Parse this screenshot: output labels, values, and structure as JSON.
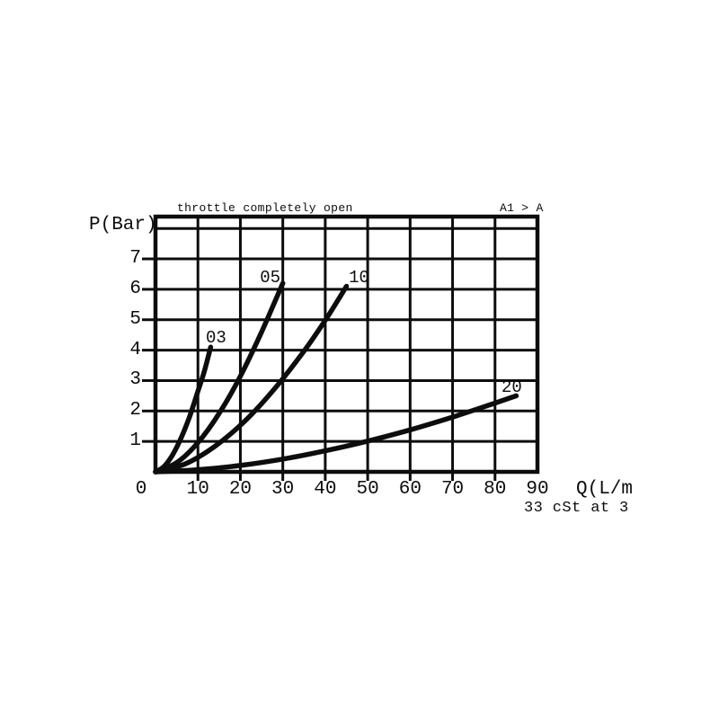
{
  "page": {
    "background": "#ffffff",
    "ink_color": "#0d0d0d"
  },
  "chart_data": {
    "type": "line",
    "title": "throttle completely open",
    "corner_note": "A1 > A",
    "ylabel": "P(Bar)",
    "xlabel": "Q(L/m",
    "footnote": "33 cSt at 3",
    "xlim": [
      0,
      90
    ],
    "ylim": [
      0,
      8.4
    ],
    "x_ticks": [
      0,
      10,
      20,
      30,
      40,
      50,
      60,
      70,
      80,
      90
    ],
    "y_ticks": [
      1,
      2,
      3,
      4,
      5,
      6,
      7
    ],
    "y_gridlines": [
      1,
      2,
      3,
      4,
      5,
      6,
      7,
      8
    ],
    "grid": true,
    "legend_position": "inline-curve-labels",
    "line_color": "#0d0d0d",
    "series": [
      {
        "name": "03",
        "points": [
          [
            0,
            0
          ],
          [
            2,
            0.17
          ],
          [
            4,
            0.55
          ],
          [
            6,
            1.1
          ],
          [
            8,
            1.8
          ],
          [
            10,
            2.65
          ],
          [
            11.5,
            3.3
          ],
          [
            13,
            4.1
          ]
        ],
        "label_offset": [
          6,
          -10
        ]
      },
      {
        "name": "05",
        "points": [
          [
            0,
            0
          ],
          [
            5,
            0.3
          ],
          [
            10,
            0.96
          ],
          [
            15,
            1.92
          ],
          [
            20,
            3.14
          ],
          [
            25,
            4.6
          ],
          [
            30,
            6.2
          ]
        ],
        "label_offset": [
          -14,
          -6
        ]
      },
      {
        "name": "10",
        "points": [
          [
            0,
            0
          ],
          [
            7,
            0.26
          ],
          [
            14,
            0.84
          ],
          [
            21,
            1.66
          ],
          [
            28,
            2.72
          ],
          [
            35,
            3.97
          ],
          [
            40,
            4.98
          ],
          [
            45,
            6.1
          ]
        ],
        "label_offset": [
          14,
          -10
        ]
      },
      {
        "name": "20",
        "points": [
          [
            0,
            0
          ],
          [
            10,
            0.07
          ],
          [
            20,
            0.21
          ],
          [
            30,
            0.42
          ],
          [
            40,
            0.69
          ],
          [
            50,
            1.01
          ],
          [
            60,
            1.38
          ],
          [
            70,
            1.8
          ],
          [
            80,
            2.26
          ],
          [
            85,
            2.5
          ]
        ],
        "label_offset": [
          -5,
          -9
        ]
      }
    ]
  }
}
